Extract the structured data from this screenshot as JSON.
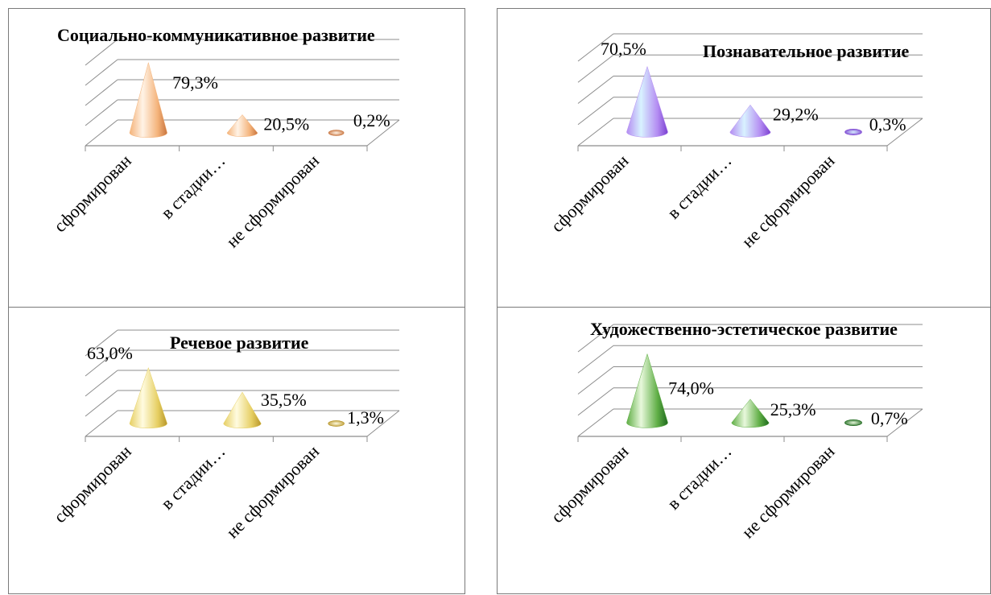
{
  "chart_data": [
    {
      "type": "bar",
      "style": "3d-cone",
      "title": "Социально-коммуникативное развитие",
      "categories": [
        "сформирован",
        "в стадии…",
        "не сформирован"
      ],
      "values": [
        79.3,
        20.5,
        0.2
      ],
      "value_labels": [
        "79,3%",
        "20,5%",
        "0,2%"
      ],
      "ylim": [
        0,
        100
      ],
      "grid": true,
      "colors": {
        "light": "#fff3e6",
        "mid": "#f4b37a",
        "dark": "#c8743e"
      }
    },
    {
      "type": "bar",
      "style": "3d-cone",
      "title": "Познавательное развитие",
      "categories": [
        "сформирован",
        "в стадии…",
        "не сформирован"
      ],
      "values": [
        70.5,
        29.2,
        0.3
      ],
      "value_labels": [
        "70,5%",
        "29,2%",
        "0,3%"
      ],
      "ylim": [
        0,
        100
      ],
      "grid": true,
      "colors": {
        "light": "#d8f2ff",
        "mid": "#b48cf2",
        "dark": "#7a3fd0"
      }
    },
    {
      "type": "bar",
      "style": "3d-cone",
      "title": "Речевое развитие",
      "categories": [
        "сформирован",
        "в стадии…",
        "не сформирован"
      ],
      "values": [
        63.0,
        35.5,
        1.3
      ],
      "value_labels": [
        "63,0%",
        "35,5%",
        "1,3%"
      ],
      "ylim": [
        0,
        100
      ],
      "grid": true,
      "colors": {
        "light": "#fffbe0",
        "mid": "#e6cf63",
        "dark": "#b8962a"
      }
    },
    {
      "type": "bar",
      "style": "3d-cone",
      "title": "Художественно-эстетическое развитие",
      "categories": [
        "сформирован",
        "в стадии…",
        "не сформирован"
      ],
      "values": [
        74.0,
        25.3,
        0.7
      ],
      "value_labels": [
        "74,0%",
        "25,3%",
        "0,7%"
      ],
      "ylim": [
        0,
        100
      ],
      "grid": true,
      "colors": {
        "light": "#e8f8dc",
        "mid": "#5fae45",
        "dark": "#1f6a1f"
      }
    }
  ]
}
